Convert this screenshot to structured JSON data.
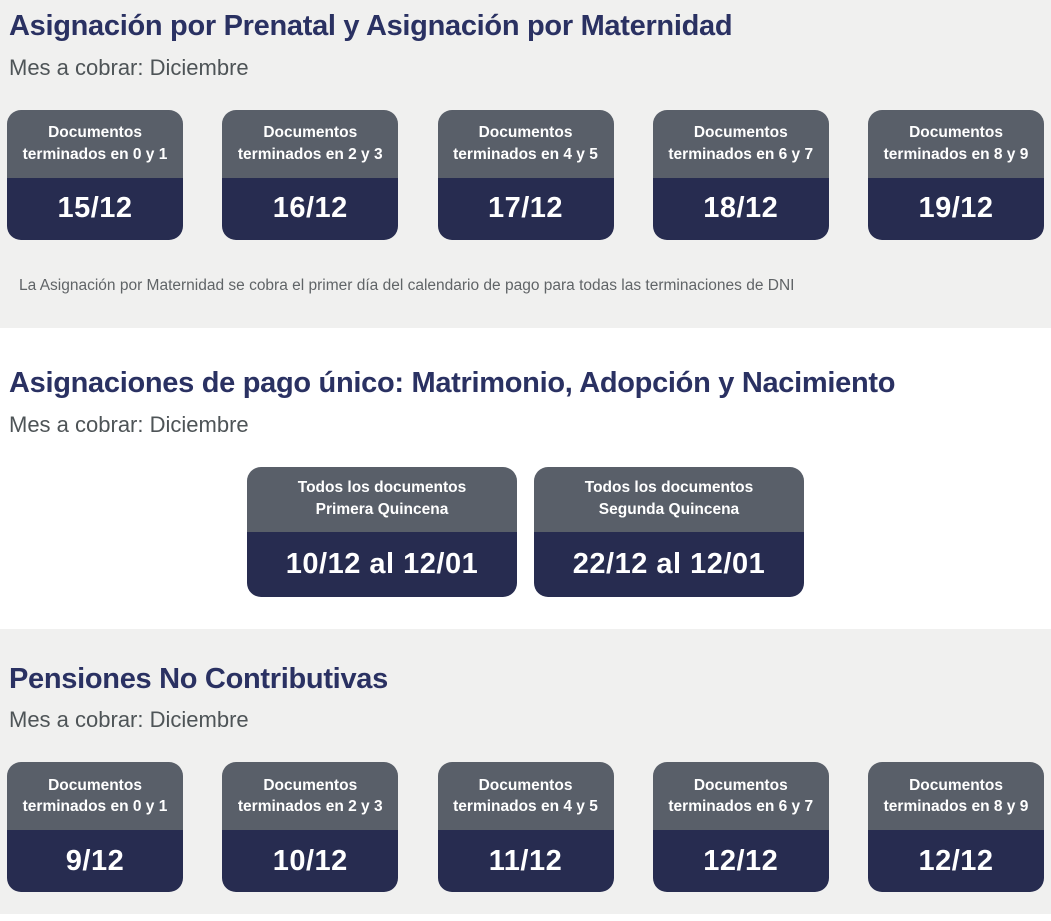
{
  "page": {
    "background_gray": "#f0f0ef",
    "card_header_color": "#595f69",
    "card_body_color": "#272c50",
    "title_color": "#2a3162"
  },
  "sections": [
    {
      "title": "Asignación por Prenatal y Asignación por Maternidad",
      "subtitle": "Mes a cobrar: Diciembre",
      "note": "La Asignación por Maternidad se cobra el primer día del calendario de pago para todas las terminaciones de DNI",
      "cards": [
        {
          "label": "Documentos terminados en 0 y 1",
          "date": "15/12"
        },
        {
          "label": "Documentos terminados en 2 y 3",
          "date": "16/12"
        },
        {
          "label": "Documentos terminados en 4 y 5",
          "date": "17/12"
        },
        {
          "label": "Documentos terminados en 6 y 7",
          "date": "18/12"
        },
        {
          "label": "Documentos terminados en 8 y 9",
          "date": "19/12"
        }
      ]
    },
    {
      "title": "Asignaciones de pago único: Matrimonio, Adopción y Nacimiento",
      "subtitle": "Mes a cobrar: Diciembre",
      "cards": [
        {
          "label": "Todos los documentos Primera Quincena",
          "date": "10/12 al 12/01"
        },
        {
          "label": "Todos los documentos Segunda Quincena",
          "date": "22/12 al 12/01"
        }
      ]
    },
    {
      "title": "Pensiones No Contributivas",
      "subtitle": "Mes a cobrar: Diciembre",
      "cards": [
        {
          "label": "Documentos terminados en 0 y 1",
          "date": "9/12"
        },
        {
          "label": "Documentos terminados en 2 y 3",
          "date": "10/12"
        },
        {
          "label": "Documentos terminados en 4 y 5",
          "date": "11/12"
        },
        {
          "label": "Documentos terminados en 6 y 7",
          "date": "12/12"
        },
        {
          "label": "Documentos terminados en 8 y 9",
          "date": "12/12"
        }
      ]
    }
  ]
}
